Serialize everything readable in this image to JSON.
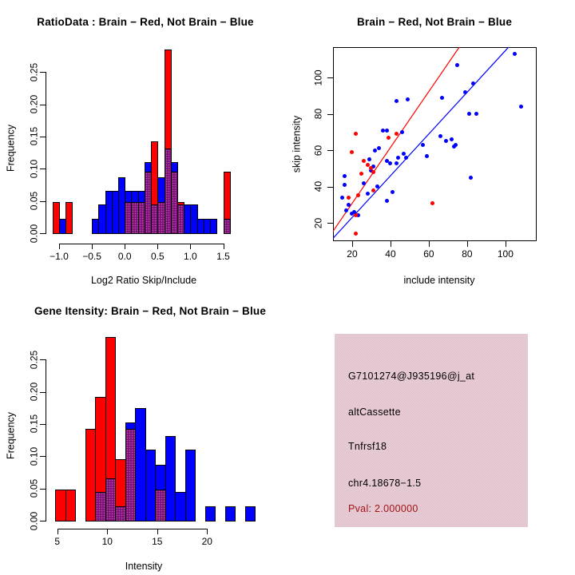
{
  "colors": {
    "red": "#ff0000",
    "blue": "#0000ff",
    "overlap": "#7c117c",
    "info_box_bg": "#eeccd5",
    "pval_text": "#a31414",
    "axis": "#000000",
    "background": "#ffffff"
  },
  "chart_data": [
    {
      "id": "ratio_histogram",
      "type": "bar",
      "subtype": "overlaid-histogram",
      "title": "RatioData : Brain − Red, Not Brain − Blue",
      "xlabel": "Log2 Ratio Skip/Include",
      "ylabel": "Frequency",
      "legend": {
        "red": "Brain",
        "blue": "Not Brain"
      },
      "bin_width": 0.1,
      "xlim": [
        -1.17,
        1.81
      ],
      "ylim": [
        0,
        0.285
      ],
      "grid": false,
      "bins": [
        {
          "x": -1.1,
          "red": 0.048,
          "blue": 0
        },
        {
          "x": -1.0,
          "red": 0,
          "blue": 0.022
        },
        {
          "x": -0.9,
          "red": 0.048,
          "blue": 0
        },
        {
          "x": -0.5,
          "red": 0,
          "blue": 0.022
        },
        {
          "x": -0.4,
          "red": 0,
          "blue": 0.044
        },
        {
          "x": -0.3,
          "red": 0,
          "blue": 0.066
        },
        {
          "x": -0.2,
          "red": 0,
          "blue": 0.066
        },
        {
          "x": -0.1,
          "red": 0,
          "blue": 0.087
        },
        {
          "x": 0.0,
          "red": 0.048,
          "blue": 0.066
        },
        {
          "x": 0.1,
          "red": 0.048,
          "blue": 0.066
        },
        {
          "x": 0.2,
          "red": 0.048,
          "blue": 0.066
        },
        {
          "x": 0.3,
          "red": 0.095,
          "blue": 0.11
        },
        {
          "x": 0.4,
          "red": 0.142,
          "blue": 0.044
        },
        {
          "x": 0.5,
          "red": 0.048,
          "blue": 0.087
        },
        {
          "x": 0.6,
          "red": 0.285,
          "blue": 0.131
        },
        {
          "x": 0.7,
          "red": 0.095,
          "blue": 0.11
        },
        {
          "x": 0.8,
          "red": 0.048,
          "blue": 0.044
        },
        {
          "x": 0.9,
          "red": 0,
          "blue": 0.044
        },
        {
          "x": 1.0,
          "red": 0,
          "blue": 0.044
        },
        {
          "x": 1.1,
          "red": 0,
          "blue": 0.022
        },
        {
          "x": 1.2,
          "red": 0,
          "blue": 0.022
        },
        {
          "x": 1.3,
          "red": 0,
          "blue": 0.022
        },
        {
          "x": 1.5,
          "red": 0.095,
          "blue": 0.022
        }
      ],
      "x_ticks": [
        {
          "v": -1.0,
          "label": "−1.0"
        },
        {
          "v": -0.5,
          "label": "−0.5"
        },
        {
          "v": 0.0,
          "label": "0.0"
        },
        {
          "v": 0.5,
          "label": "0.5"
        },
        {
          "v": 1.0,
          "label": "1.0"
        },
        {
          "v": 1.5,
          "label": "1.5"
        }
      ],
      "y_ticks": [
        {
          "v": 0.0,
          "label": "0.00"
        },
        {
          "v": 0.05,
          "label": "0.05"
        },
        {
          "v": 0.1,
          "label": "0.10"
        },
        {
          "v": 0.15,
          "label": "0.15"
        },
        {
          "v": 0.2,
          "label": "0.20"
        },
        {
          "v": 0.25,
          "label": "0.25"
        }
      ]
    },
    {
      "id": "skip_include_scatter",
      "type": "scatter",
      "title": "Brain − Red, Not Brain − Blue",
      "xlabel": "include intensity",
      "ylabel": "skip intensity",
      "xlim": [
        10,
        116.3
      ],
      "ylim": [
        9.9,
        116.9
      ],
      "grid": false,
      "series": [
        {
          "name": "Not Brain",
          "color_key": "blue",
          "points": [
            [
              15,
              34
            ],
            [
              16,
              46
            ],
            [
              16,
              41
            ],
            [
              17,
              27
            ],
            [
              18,
              30
            ],
            [
              20,
              25
            ],
            [
              21,
              26
            ],
            [
              23,
              24
            ],
            [
              26,
              42
            ],
            [
              28,
              36
            ],
            [
              29,
              55
            ],
            [
              30,
              49
            ],
            [
              31,
              51
            ],
            [
              32,
              60
            ],
            [
              34,
              61
            ],
            [
              33,
              40
            ],
            [
              36,
              71
            ],
            [
              38,
              71
            ],
            [
              38,
              54
            ],
            [
              40,
              53
            ],
            [
              41,
              37
            ],
            [
              38,
              32
            ],
            [
              43,
              53
            ],
            [
              44,
              56
            ],
            [
              46,
              70
            ],
            [
              43,
              87
            ],
            [
              49,
              88
            ],
            [
              47,
              58
            ],
            [
              48,
              56
            ],
            [
              57,
              63
            ],
            [
              59,
              57
            ],
            [
              66,
              68
            ],
            [
              67,
              89
            ],
            [
              69,
              65
            ],
            [
              72,
              66
            ],
            [
              73,
              62
            ],
            [
              74,
              63
            ],
            [
              75,
              107
            ],
            [
              83,
              97
            ],
            [
              79,
              92
            ],
            [
              81,
              80
            ],
            [
              85,
              80
            ],
            [
              82,
              45
            ],
            [
              105,
              113
            ],
            [
              108,
              84
            ]
          ]
        },
        {
          "name": "Brain",
          "color_key": "red",
          "points": [
            [
              22,
              69
            ],
            [
              20,
              59
            ],
            [
              39,
              67
            ],
            [
              43,
              69
            ],
            [
              26,
              54
            ],
            [
              28,
              52
            ],
            [
              30,
              50
            ],
            [
              31,
              48
            ],
            [
              25,
              47
            ],
            [
              31,
              38
            ],
            [
              18,
              34
            ],
            [
              23,
              35
            ],
            [
              22,
              24
            ],
            [
              22,
              14
            ],
            [
              62,
              31
            ]
          ]
        }
      ],
      "fit_lines": [
        {
          "name": "brain-fit",
          "color_key": "red",
          "slope": 1.54,
          "intercept": 0
        },
        {
          "name": "not-brain-fit",
          "color_key": "blue",
          "slope": 1.15,
          "intercept": 0
        }
      ],
      "x_ticks": [
        {
          "v": 20,
          "label": "20"
        },
        {
          "v": 40,
          "label": "40"
        },
        {
          "v": 60,
          "label": "60"
        },
        {
          "v": 80,
          "label": "80"
        },
        {
          "v": 100,
          "label": "100"
        }
      ],
      "y_ticks": [
        {
          "v": 20,
          "label": "20"
        },
        {
          "v": 40,
          "label": "40"
        },
        {
          "v": 60,
          "label": "60"
        },
        {
          "v": 80,
          "label": "80"
        },
        {
          "v": 100,
          "label": "100"
        }
      ]
    },
    {
      "id": "gene_intensity_histogram",
      "type": "bar",
      "subtype": "overlaid-histogram",
      "title": "Gene Itensity: Brain − Red, Not Brain − Blue",
      "xlabel": "Intensity",
      "ylabel": "Frequency",
      "legend": {
        "red": "Brain",
        "blue": "Not Brain"
      },
      "bin_width": 1.0,
      "xlim": [
        4.06,
        25.02
      ],
      "ylim": [
        0,
        0.285
      ],
      "grid": false,
      "bins": [
        {
          "x": 4.8,
          "red": 0.048,
          "blue": 0
        },
        {
          "x": 5.8,
          "red": 0.048,
          "blue": 0
        },
        {
          "x": 7.8,
          "red": 0.142,
          "blue": 0
        },
        {
          "x": 8.8,
          "red": 0.192,
          "blue": 0.044
        },
        {
          "x": 9.8,
          "red": 0.285,
          "blue": 0.066
        },
        {
          "x": 10.8,
          "red": 0.095,
          "blue": 0.022
        },
        {
          "x": 11.8,
          "red": 0.142,
          "blue": 0.153
        },
        {
          "x": 12.8,
          "red": 0,
          "blue": 0.175
        },
        {
          "x": 13.8,
          "red": 0,
          "blue": 0.11
        },
        {
          "x": 14.8,
          "red": 0.048,
          "blue": 0.087
        },
        {
          "x": 15.8,
          "red": 0,
          "blue": 0.131
        },
        {
          "x": 16.8,
          "red": 0,
          "blue": 0.044
        },
        {
          "x": 17.8,
          "red": 0,
          "blue": 0.11
        },
        {
          "x": 19.8,
          "red": 0,
          "blue": 0.022
        },
        {
          "x": 21.8,
          "red": 0,
          "blue": 0.022
        },
        {
          "x": 23.8,
          "red": 0,
          "blue": 0.022
        }
      ],
      "x_ticks": [
        {
          "v": 5,
          "label": "5"
        },
        {
          "v": 10,
          "label": "10"
        },
        {
          "v": 15,
          "label": "15"
        },
        {
          "v": 20,
          "label": "20"
        }
      ],
      "y_ticks": [
        {
          "v": 0.0,
          "label": "0.00"
        },
        {
          "v": 0.05,
          "label": "0.05"
        },
        {
          "v": 0.1,
          "label": "0.10"
        },
        {
          "v": 0.15,
          "label": "0.15"
        },
        {
          "v": 0.2,
          "label": "0.20"
        },
        {
          "v": 0.25,
          "label": "0.25"
        }
      ]
    },
    {
      "id": "info_panel",
      "type": "table",
      "lines": [
        {
          "text": "G7101274@J935196@j_at",
          "color_key": "axis"
        },
        {
          "text": "altCassette",
          "color_key": "axis"
        },
        {
          "text": "Tnfrsf18",
          "color_key": "axis"
        },
        {
          "text": "chr4.18678−1.5",
          "color_key": "axis"
        },
        {
          "text": "Pval: 2.000000",
          "color_key": "pval_text"
        }
      ]
    }
  ]
}
